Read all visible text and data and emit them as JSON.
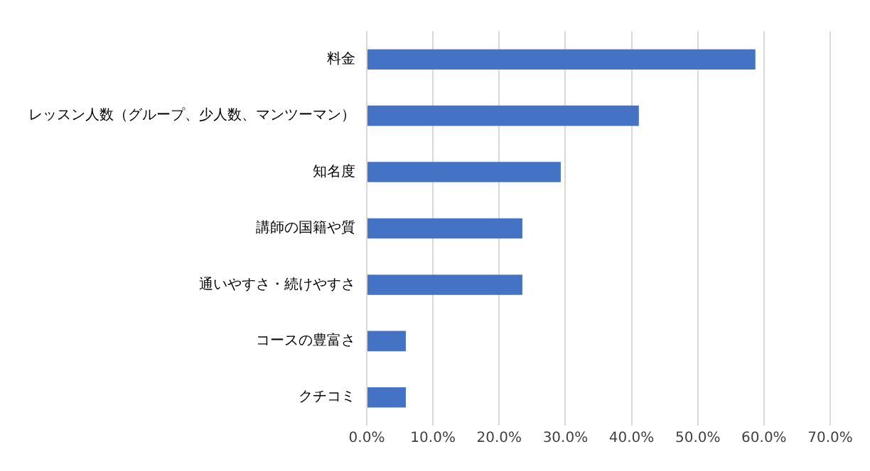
{
  "chart_data": {
    "type": "bar",
    "orientation": "horizontal",
    "categories": [
      "料金",
      "レッスン人数（グループ、少人数、マンツーマン）",
      "知名度",
      "講師の国籍や質",
      "通いやすさ・続けやすさ",
      "コースの豊富さ",
      "クチコミ"
    ],
    "values": [
      58.7,
      41.1,
      29.3,
      23.5,
      23.5,
      5.9,
      5.9
    ],
    "color": "#4472c4",
    "xlim": [
      0,
      70
    ],
    "xticks": [
      {
        "value": 0,
        "label": "0.0%"
      },
      {
        "value": 10,
        "label": "10.0%"
      },
      {
        "value": 20,
        "label": "20.0%"
      },
      {
        "value": 30,
        "label": "30.0%"
      },
      {
        "value": 40,
        "label": "40.0%"
      },
      {
        "value": 50,
        "label": "50.0%"
      },
      {
        "value": 60,
        "label": "60.0%"
      },
      {
        "value": 70,
        "label": "70.0%"
      }
    ],
    "grid": "x",
    "legend": false
  }
}
